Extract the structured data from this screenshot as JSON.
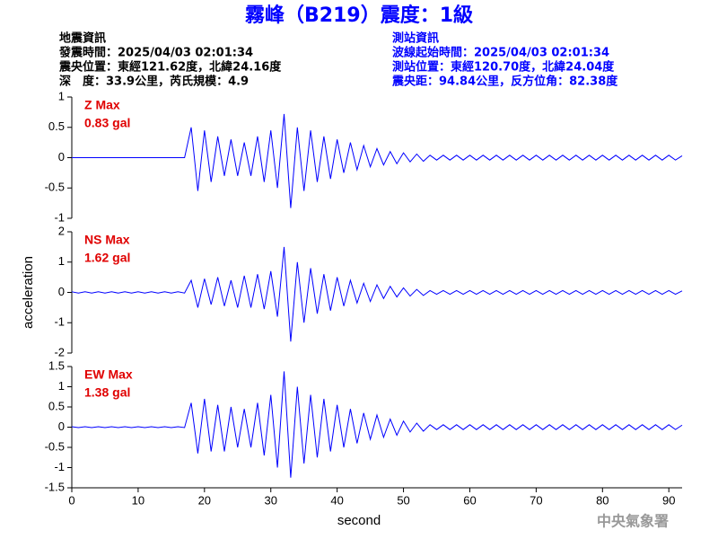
{
  "header": {
    "title": "霧峰（B219）震度：1級",
    "left": [
      "地震資訊",
      "發震時間：2025/04/03 02:01:34",
      "震央位置：東經121.62度，北緯24.16度",
      "深　度：33.9公里，芮氏規模：4.9"
    ],
    "right": [
      "測站資訊",
      "波線起始時間：2025/04/03 02:01:34",
      "測站位置：東經120.70度，北緯24.04度",
      "震央距：94.84公里，反方位角：82.38度"
    ],
    "footer": "中央氣象署"
  },
  "chart_data": [
    {
      "type": "line",
      "annotations": [
        "Z Max",
        "0.83 gal"
      ],
      "x": [
        0,
        1,
        2,
        3,
        4,
        5,
        6,
        7,
        8,
        9,
        10,
        11,
        12,
        13,
        14,
        15,
        16,
        17,
        18,
        19,
        20,
        21,
        22,
        23,
        24,
        25,
        26,
        27,
        28,
        29,
        30,
        31,
        32,
        33,
        34,
        35,
        36,
        37,
        38,
        39,
        40,
        41,
        42,
        43,
        44,
        45,
        46,
        47,
        48,
        49,
        50,
        51,
        52,
        53,
        54,
        55,
        56,
        57,
        58,
        59,
        60,
        61,
        62,
        63,
        64,
        65,
        66,
        67,
        68,
        69,
        70,
        71,
        72,
        73,
        74,
        75,
        76,
        77,
        78,
        79,
        80,
        81,
        82,
        83,
        84,
        85,
        86,
        87,
        88,
        89,
        90,
        91,
        92
      ],
      "series": [
        {
          "color": "#0000ff",
          "values": [
            0,
            0,
            0,
            0,
            0,
            0,
            0,
            0,
            0,
            0,
            0,
            0,
            0,
            0,
            0,
            0,
            0,
            0,
            0.5,
            -0.55,
            0.45,
            -0.4,
            0.35,
            -0.3,
            0.3,
            -0.3,
            0.25,
            -0.3,
            0.35,
            -0.4,
            0.45,
            -0.5,
            0.72,
            -0.83,
            0.5,
            -0.55,
            0.45,
            -0.4,
            0.35,
            -0.35,
            0.3,
            -0.25,
            0.25,
            -0.2,
            0.2,
            -0.15,
            0.15,
            -0.12,
            0.1,
            -0.1,
            0.08,
            -0.07,
            0.06,
            -0.06,
            0.04,
            -0.04,
            0.04,
            -0.04,
            0.04,
            -0.04,
            0.04,
            -0.04,
            0.04,
            -0.04,
            0.04,
            -0.04,
            0.04,
            -0.04,
            0.04,
            -0.04,
            0.04,
            -0.04,
            0.04,
            -0.04,
            0.04,
            -0.04,
            0.04,
            -0.04,
            0.04,
            -0.04,
            0.04,
            -0.04,
            0.04,
            -0.04,
            0.04,
            -0.04,
            0.04,
            -0.04,
            0.04,
            -0.04,
            0.04,
            -0.04,
            0.03
          ]
        }
      ],
      "xlim": [
        0,
        92
      ],
      "ylim": [
        -1,
        1
      ],
      "yticks": [
        1,
        0.5,
        0,
        -0.5,
        -1
      ]
    },
    {
      "type": "line",
      "annotations": [
        "NS Max",
        "1.62 gal"
      ],
      "ylabel": "acceleration",
      "x": [
        0,
        1,
        2,
        3,
        4,
        5,
        6,
        7,
        8,
        9,
        10,
        11,
        12,
        13,
        14,
        15,
        16,
        17,
        18,
        19,
        20,
        21,
        22,
        23,
        24,
        25,
        26,
        27,
        28,
        29,
        30,
        31,
        32,
        33,
        34,
        35,
        36,
        37,
        38,
        39,
        40,
        41,
        42,
        43,
        44,
        45,
        46,
        47,
        48,
        49,
        50,
        51,
        52,
        53,
        54,
        55,
        56,
        57,
        58,
        59,
        60,
        61,
        62,
        63,
        64,
        65,
        66,
        67,
        68,
        69,
        70,
        71,
        72,
        73,
        74,
        75,
        76,
        77,
        78,
        79,
        80,
        81,
        82,
        83,
        84,
        85,
        86,
        87,
        88,
        89,
        90,
        91,
        92
      ],
      "series": [
        {
          "color": "#0000ff",
          "values": [
            0.02,
            -0.02,
            0.02,
            -0.02,
            0.02,
            -0.02,
            0.02,
            -0.02,
            0.02,
            -0.02,
            0.02,
            -0.02,
            0.02,
            -0.02,
            0.02,
            -0.02,
            0.02,
            -0.02,
            0.4,
            -0.5,
            0.45,
            -0.4,
            0.5,
            -0.45,
            0.4,
            -0.5,
            0.55,
            -0.5,
            0.6,
            -0.55,
            0.7,
            -0.8,
            1.5,
            -1.62,
            1.0,
            -1.0,
            0.8,
            -0.7,
            0.6,
            -0.6,
            0.5,
            -0.45,
            0.4,
            -0.35,
            0.3,
            -0.3,
            0.25,
            -0.2,
            0.2,
            -0.15,
            0.15,
            -0.12,
            0.1,
            -0.1,
            0.06,
            -0.06,
            0.06,
            -0.06,
            0.06,
            -0.06,
            0.06,
            -0.06,
            0.06,
            -0.06,
            0.06,
            -0.06,
            0.06,
            -0.06,
            0.06,
            -0.06,
            0.06,
            -0.06,
            0.06,
            -0.06,
            0.06,
            -0.06,
            0.06,
            -0.06,
            0.06,
            -0.06,
            0.06,
            -0.06,
            0.06,
            -0.06,
            0.06,
            -0.06,
            0.06,
            -0.06,
            0.06,
            -0.06,
            0.06,
            -0.06,
            0.05
          ]
        }
      ],
      "xlim": [
        0,
        92
      ],
      "ylim": [
        -2,
        2
      ],
      "yticks": [
        2,
        1,
        0,
        -1,
        -2
      ]
    },
    {
      "type": "line",
      "annotations": [
        "EW Max",
        "1.38 gal"
      ],
      "xlabel": "second",
      "x": [
        0,
        1,
        2,
        3,
        4,
        5,
        6,
        7,
        8,
        9,
        10,
        11,
        12,
        13,
        14,
        15,
        16,
        17,
        18,
        19,
        20,
        21,
        22,
        23,
        24,
        25,
        26,
        27,
        28,
        29,
        30,
        31,
        32,
        33,
        34,
        35,
        36,
        37,
        38,
        39,
        40,
        41,
        42,
        43,
        44,
        45,
        46,
        47,
        48,
        49,
        50,
        51,
        52,
        53,
        54,
        55,
        56,
        57,
        58,
        59,
        60,
        61,
        62,
        63,
        64,
        65,
        66,
        67,
        68,
        69,
        70,
        71,
        72,
        73,
        74,
        75,
        76,
        77,
        78,
        79,
        80,
        81,
        82,
        83,
        84,
        85,
        86,
        87,
        88,
        89,
        90,
        91,
        92
      ],
      "series": [
        {
          "color": "#0000ff",
          "values": [
            0.01,
            -0.01,
            0.01,
            -0.01,
            0.01,
            -0.01,
            0.01,
            -0.01,
            0.01,
            -0.01,
            0.01,
            -0.01,
            0.01,
            -0.01,
            0.01,
            -0.01,
            0.01,
            -0.01,
            0.6,
            -0.65,
            0.7,
            -0.6,
            0.55,
            -0.6,
            0.5,
            -0.5,
            0.45,
            -0.5,
            0.6,
            -0.7,
            0.8,
            -1.0,
            1.38,
            -1.25,
            1.0,
            -0.9,
            0.8,
            -0.75,
            0.7,
            -0.6,
            0.55,
            -0.5,
            0.45,
            -0.4,
            0.35,
            -0.3,
            0.3,
            -0.25,
            0.2,
            -0.2,
            0.15,
            -0.12,
            0.1,
            -0.1,
            0.06,
            -0.06,
            0.06,
            -0.06,
            0.06,
            -0.06,
            0.06,
            -0.06,
            0.06,
            -0.06,
            0.06,
            -0.06,
            0.06,
            -0.06,
            0.06,
            -0.06,
            0.06,
            -0.06,
            0.06,
            -0.06,
            0.06,
            -0.06,
            0.06,
            -0.06,
            0.06,
            -0.06,
            0.06,
            -0.06,
            0.06,
            -0.06,
            0.06,
            -0.06,
            0.06,
            -0.06,
            0.06,
            -0.06,
            0.06,
            -0.06,
            0.05
          ]
        }
      ],
      "xlim": [
        0,
        92
      ],
      "ylim": [
        -1.5,
        1.5
      ],
      "yticks": [
        1.5,
        1,
        0.5,
        0,
        -0.5,
        -1,
        -1.5
      ],
      "xticks": [
        0,
        10,
        20,
        30,
        40,
        50,
        60,
        70,
        80,
        90
      ]
    }
  ]
}
